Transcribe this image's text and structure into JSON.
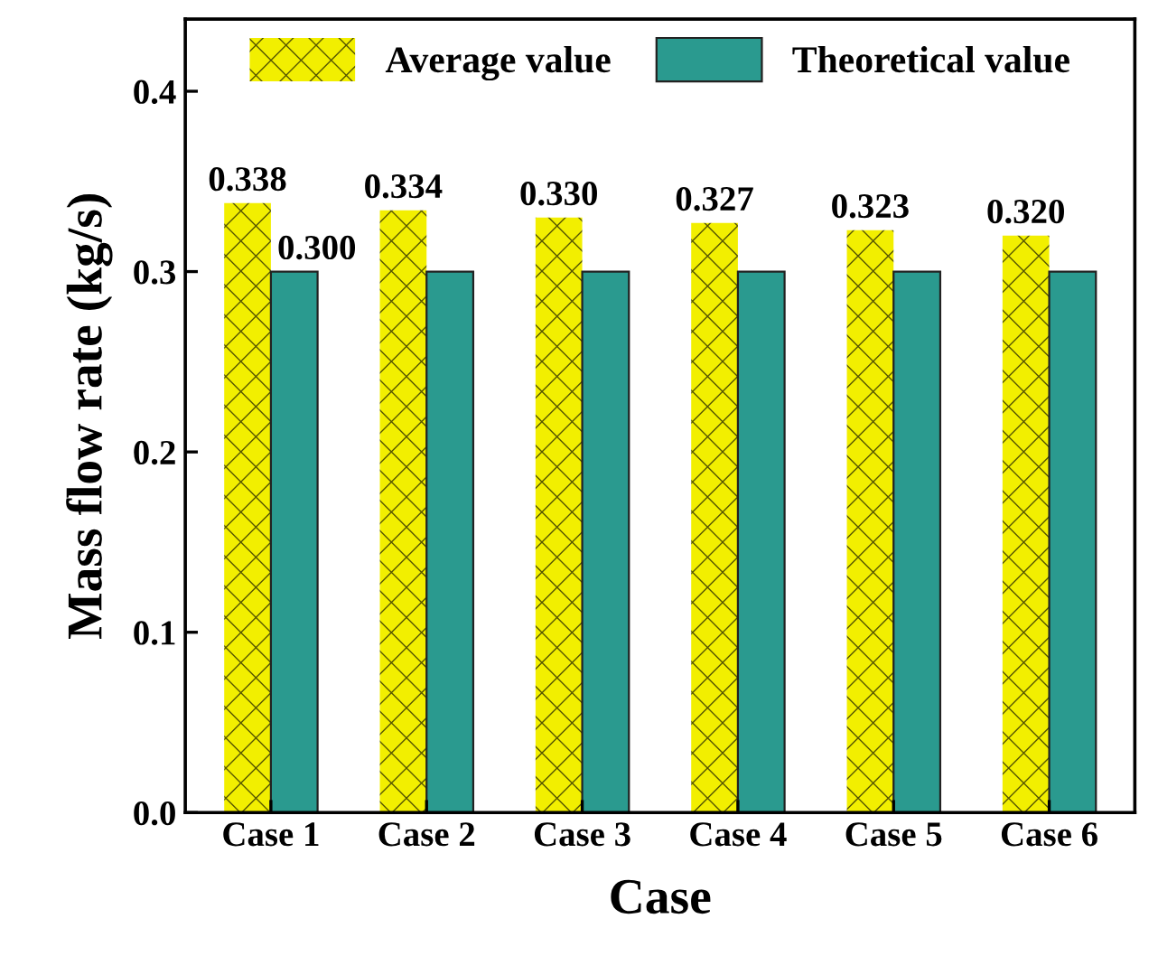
{
  "chart_data": {
    "type": "bar",
    "xlabel": "Case",
    "ylabel": "Mass flow rate (kg/s)",
    "categories": [
      "Case 1",
      "Case 2",
      "Case 3",
      "Case 4",
      "Case 5",
      "Case 6"
    ],
    "series": [
      {
        "name": "Average value",
        "color": "#f2ef00",
        "values": [
          0.338,
          0.334,
          0.33,
          0.327,
          0.323,
          0.32
        ],
        "value_labels": [
          "0.338",
          "0.334",
          "0.330",
          "0.327",
          "0.323",
          "0.320"
        ]
      },
      {
        "name": "Theoretical value",
        "color": "#2a9a8f",
        "values": [
          0.3,
          0.3,
          0.3,
          0.3,
          0.3,
          0.3
        ],
        "value_labels": [
          "0.300",
          null,
          null,
          null,
          null,
          null
        ]
      }
    ],
    "ylim": [
      0,
      0.44
    ],
    "yticks": [
      "0.0",
      "0.1",
      "0.2",
      "0.3",
      "0.4"
    ],
    "grid": false,
    "legend": "top"
  }
}
